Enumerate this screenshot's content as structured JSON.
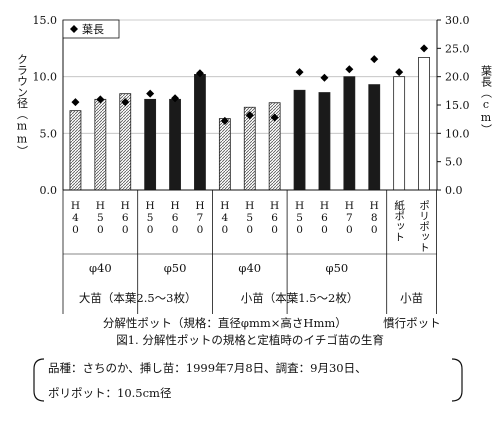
{
  "chart_data": {
    "type": "bar",
    "categories": [
      "H40",
      "H50",
      "H60",
      "H50",
      "H60",
      "H70",
      "H40",
      "H50",
      "H60",
      "H50",
      "H60",
      "H70",
      "H80",
      "紙ポット",
      "ポリポット"
    ],
    "series": [
      {
        "name": "",
        "axis": "left",
        "values": [
          7.0,
          8.0,
          8.5,
          8.0,
          8.0,
          10.2,
          6.3,
          7.3,
          7.7,
          8.8,
          8.6,
          10.0,
          9.3,
          10.0,
          11.7
        ]
      },
      {
        "name": "葉長",
        "axis": "right",
        "values": [
          15.5,
          16.0,
          15.5,
          17.0,
          16.2,
          20.6,
          12.2,
          13.2,
          12.8,
          20.8,
          19.8,
          21.3,
          23.1,
          20.8,
          25.0
        ]
      }
    ],
    "bar_styles": [
      "hatched",
      "hatched",
      "hatched",
      "black",
      "black",
      "black",
      "hatched",
      "hatched",
      "hatched",
      "black",
      "black",
      "black",
      "black",
      "white",
      "white"
    ],
    "ylabel": "クラウン径（mm）",
    "y2label": "葉長（cm）",
    "ylim": [
      0,
      15
    ],
    "y2lim": [
      0,
      30
    ],
    "yticks": [
      "0.0",
      "5.0",
      "10.0",
      "15.0"
    ],
    "y2ticks": [
      "0.0",
      "5.0",
      "10.0",
      "15.0",
      "20.0",
      "25.0",
      "30.0"
    ],
    "legend": "葉長",
    "legend_position": "top-left",
    "groups_level1": [
      "φ40",
      "φ50",
      "φ40",
      "φ50"
    ],
    "groups_level2": [
      "大苗（本葉2.5～3枚）",
      "小苗（本葉1.5～2枚）",
      "小苗"
    ],
    "groups_level3": [
      "分解性ポット（規格：直径φmm×高さHmm）",
      "慣行ポット"
    ],
    "title": "図1. 分解性ポットの規格と定植時のイチゴ苗の生育",
    "colors": {
      "black_bar": "#1a1a1a",
      "hatch": "#666666",
      "marker": "#000000"
    }
  },
  "note": {
    "line1": "品種：さちのか、挿し苗：1999年7月8日、調査：9月30日、",
    "line2": "ポリポット：10.5cm径"
  }
}
